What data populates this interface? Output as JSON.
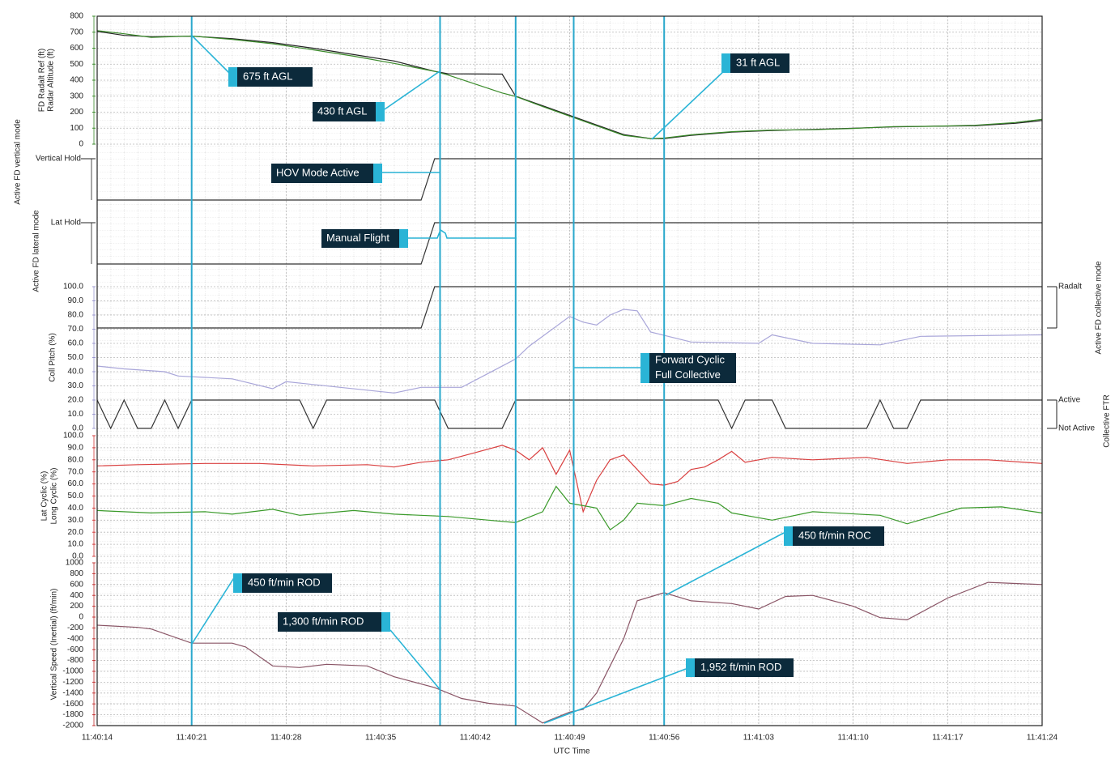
{
  "x_axis": {
    "xlabel": "UTC Time",
    "xlim": [
      "11:40:14",
      "11:41:24"
    ],
    "xticks": [
      "11:40:14",
      "11:40:21",
      "11:40:28",
      "11:40:35",
      "11:40:42",
      "11:40:49",
      "11:40:56",
      "11:41:03",
      "11:41:10",
      "11:41:17",
      "11:41:24"
    ]
  },
  "markers": [
    "11:40:21",
    "11:40:39.4",
    "11:40:45",
    "11:40:49.3",
    "11:40:56"
  ],
  "annotations": [
    {
      "lines": [
        "675 ft  AGL"
      ]
    },
    {
      "lines": [
        "430 ft AGL"
      ]
    },
    {
      "lines": [
        "31 ft AGL"
      ]
    },
    {
      "lines": [
        "HOV Mode Active"
      ]
    },
    {
      "lines": [
        "Manual Flight"
      ]
    },
    {
      "lines": [
        "Forward Cyclic",
        "Full Collective"
      ]
    },
    {
      "lines": [
        "450 ft/min ROD"
      ]
    },
    {
      "lines": [
        "1,300 ft/min ROD"
      ]
    },
    {
      "lines": [
        "450 ft/min ROC"
      ]
    },
    {
      "lines": [
        "1,952 ft/min ROD"
      ]
    }
  ],
  "chart_data": [
    {
      "type": "line",
      "ylim": [
        0,
        800
      ],
      "yticks": [
        0,
        100,
        200,
        300,
        400,
        500,
        600,
        700,
        800
      ],
      "grid": true,
      "tick_color": "#3a8a2a",
      "series": [
        {
          "name": "FD Radalt Ref (ft)",
          "color": "#222222",
          "x": [
            "11:40:14",
            "11:40:16",
            "11:40:18",
            "11:40:21",
            "11:40:24",
            "11:40:27",
            "11:40:30",
            "11:40:33",
            "11:40:36",
            "11:40:39",
            "11:40:40",
            "11:40:44",
            "11:40:45",
            "11:40:47",
            "11:40:49",
            "11:40:51",
            "11:40:53",
            "11:40:55",
            "11:40:56",
            "11:40:58",
            "11:41:01",
            "11:41:04",
            "11:41:07",
            "11:41:10",
            "11:41:13",
            "11:41:16",
            "11:41:19",
            "11:41:22",
            "11:41:24"
          ],
          "values": [
            705,
            680,
            672,
            675,
            660,
            635,
            600,
            560,
            520,
            455,
            440,
            438,
            300,
            240,
            180,
            120,
            60,
            35,
            35,
            55,
            75,
            85,
            92,
            100,
            108,
            112,
            115,
            130,
            148
          ]
        },
        {
          "name": "Radar Altitude (ft)",
          "color": "#3a8a2a",
          "x": [
            "11:40:14",
            "11:40:16",
            "11:40:18",
            "11:40:21",
            "11:40:24",
            "11:40:27",
            "11:40:30",
            "11:40:33",
            "11:40:36",
            "11:40:39",
            "11:40:40",
            "11:40:44",
            "11:40:45",
            "11:40:47",
            "11:40:49",
            "11:40:51",
            "11:40:53",
            "11:40:55",
            "11:40:56",
            "11:40:58",
            "11:41:01",
            "11:41:04",
            "11:41:07",
            "11:41:10",
            "11:41:13",
            "11:41:16",
            "11:41:19",
            "11:41:22",
            "11:41:24"
          ],
          "values": [
            710,
            690,
            668,
            676,
            655,
            628,
            590,
            550,
            505,
            455,
            432,
            320,
            298,
            235,
            175,
            115,
            55,
            35,
            38,
            58,
            78,
            88,
            90,
            98,
            110,
            112,
            118,
            135,
            155
          ]
        }
      ]
    },
    {
      "type": "line",
      "ylabel": "Active FD vertical mode",
      "ylim": [
        0,
        1
      ],
      "yticks": [
        {
          "value": 1,
          "label": "Vertical Hold"
        }
      ],
      "tick_color": "#222222",
      "series": [
        {
          "color": "#333333",
          "x": [
            "11:40:14",
            "11:40:38",
            "11:40:39",
            "11:41:24"
          ],
          "values": [
            0,
            0,
            1,
            1
          ]
        }
      ]
    },
    {
      "type": "line",
      "ylabel": "Active FD lateral mode",
      "ylim": [
        0,
        1
      ],
      "yticks": [
        {
          "value": 1,
          "label": "Lat Hold"
        }
      ],
      "tick_color": "#222222",
      "series": [
        {
          "color": "#333333",
          "x": [
            "11:40:14",
            "11:40:38",
            "11:40:39",
            "11:41:24"
          ],
          "values": [
            0,
            0,
            1,
            1
          ]
        }
      ]
    },
    {
      "type": "line",
      "ylim": [
        0,
        100
      ],
      "grid": true,
      "tick_color": "#9a97cf",
      "yticks": [
        {
          "value": 0,
          "label": "0.0"
        },
        {
          "value": 10,
          "label": "10.0"
        },
        {
          "value": 20,
          "label": "20.0"
        },
        {
          "value": 30,
          "label": "30.0"
        },
        {
          "value": 40,
          "label": "40.0"
        },
        {
          "value": 50,
          "label": "50.0"
        },
        {
          "value": 60,
          "label": "60.0"
        },
        {
          "value": 70,
          "label": "70.0"
        },
        {
          "value": 80,
          "label": "80.0"
        },
        {
          "value": 90,
          "label": "90.0"
        },
        {
          "value": 100,
          "label": "100.0"
        }
      ],
      "series": [
        {
          "name": "Coll Pitch (%)",
          "color": "#a9a6d9",
          "x": [
            "11:40:14",
            "11:40:16",
            "11:40:19",
            "11:40:20",
            "11:40:24",
            "11:40:27",
            "11:40:28",
            "11:40:32",
            "11:40:36",
            "11:40:38",
            "11:40:41",
            "11:40:43",
            "11:40:45",
            "11:40:46",
            "11:40:49",
            "11:40:50",
            "11:40:51",
            "11:40:52",
            "11:40:53",
            "11:40:54",
            "11:40:55",
            "11:40:58",
            "11:41:03",
            "11:41:04",
            "11:41:07",
            "11:41:12",
            "11:41:15",
            "11:41:24"
          ],
          "values": [
            44,
            42,
            40,
            37,
            35,
            28,
            33,
            29,
            25,
            29,
            29,
            39,
            49,
            58,
            79,
            75,
            73,
            80,
            84,
            83,
            68,
            61,
            60,
            66,
            60,
            59,
            65,
            66
          ]
        }
      ]
    },
    {
      "type": "line",
      "axis_side": "right",
      "ylabel": "Active FD collective mode",
      "ylim": [
        0,
        1
      ],
      "yticks": [
        {
          "value": 1,
          "label": "Radalt"
        }
      ],
      "tick_color": "#222222",
      "series": [
        {
          "color": "#333333",
          "x": [
            "11:40:14",
            "11:40:38",
            "11:40:39",
            "11:41:24"
          ],
          "values": [
            0,
            0,
            1,
            1
          ]
        }
      ]
    },
    {
      "type": "line",
      "axis_side": "right",
      "ylabel": "Collective FTR",
      "ylim": [
        0,
        1
      ],
      "yticks": [
        {
          "value": 1,
          "label": "Active"
        },
        {
          "value": 0,
          "label": "Not Active"
        }
      ],
      "tick_color": "#222222",
      "series": [
        {
          "color": "#333333",
          "x": [
            "11:40:14",
            "11:40:15",
            "11:40:16",
            "11:40:17",
            "11:40:18",
            "11:40:19",
            "11:40:20",
            "11:40:21",
            "11:40:29",
            "11:40:30",
            "11:40:31",
            "11:40:39",
            "11:40:40",
            "11:40:44",
            "11:40:45",
            "11:41:00",
            "11:41:01",
            "11:41:02",
            "11:41:04",
            "11:41:05",
            "11:41:11",
            "11:41:12",
            "11:41:13",
            "11:41:14",
            "11:41:15",
            "11:41:24"
          ],
          "values": [
            1,
            0,
            1,
            0,
            0,
            1,
            0,
            1,
            1,
            0,
            1,
            1,
            0,
            0,
            1,
            1,
            0,
            1,
            1,
            0,
            0,
            1,
            0,
            0,
            1,
            1
          ]
        }
      ]
    },
    {
      "type": "line",
      "ylim": [
        0,
        100
      ],
      "grid": true,
      "tick_color": "#d03a3a",
      "yticks": [
        {
          "value": 0,
          "label": "0.0"
        },
        {
          "value": 10,
          "label": "10.0"
        },
        {
          "value": 20,
          "label": "20.0"
        },
        {
          "value": 30,
          "label": "30.0"
        },
        {
          "value": 40,
          "label": "40.0"
        },
        {
          "value": 50,
          "label": "50.0"
        },
        {
          "value": 60,
          "label": "60.0"
        },
        {
          "value": 70,
          "label": "70.0"
        },
        {
          "value": 80,
          "label": "80.0"
        },
        {
          "value": 90,
          "label": "90.0"
        },
        {
          "value": 100,
          "label": "100.0"
        }
      ],
      "series": [
        {
          "name": "Long Cyclic (%)",
          "color": "#d94040",
          "x": [
            "11:40:14",
            "11:40:17",
            "11:40:22",
            "11:40:26",
            "11:40:30",
            "11:40:34",
            "11:40:36",
            "11:40:38",
            "11:40:40",
            "11:40:42",
            "11:40:44",
            "11:40:45",
            "11:40:46",
            "11:40:47",
            "11:40:48",
            "11:40:49",
            "11:40:50",
            "11:40:51",
            "11:40:52",
            "11:40:53",
            "11:40:54",
            "11:40:55",
            "11:40:56",
            "11:40:57",
            "11:40:58",
            "11:40:59",
            "11:41:00",
            "11:41:01",
            "11:41:02",
            "11:41:04",
            "11:41:07",
            "11:41:11",
            "11:41:14",
            "11:41:17",
            "11:41:20",
            "11:41:24"
          ],
          "values": [
            75,
            76,
            77,
            77,
            75,
            76,
            74,
            78,
            80,
            86,
            92,
            88,
            80,
            90,
            68,
            88,
            37,
            63,
            80,
            84,
            72,
            60,
            59,
            62,
            72,
            74,
            80,
            87,
            78,
            82,
            80,
            82,
            77,
            80,
            80,
            77
          ]
        },
        {
          "name": "Lat Cyclic (%)",
          "color": "#3a9a2a",
          "x": [
            "11:40:14",
            "11:40:18",
            "11:40:22",
            "11:40:24",
            "11:40:27",
            "11:40:29",
            "11:40:33",
            "11:40:36",
            "11:40:40",
            "11:40:43",
            "11:40:45",
            "11:40:47",
            "11:40:48",
            "11:40:49",
            "11:40:51",
            "11:40:52",
            "11:40:53",
            "11:40:54",
            "11:40:56",
            "11:40:58",
            "11:41:00",
            "11:41:01",
            "11:41:04",
            "11:41:07",
            "11:41:12",
            "11:41:14",
            "11:41:18",
            "11:41:21",
            "11:41:24"
          ],
          "values": [
            38,
            36,
            37,
            35,
            39,
            34,
            38,
            35,
            33,
            30,
            28,
            37,
            58,
            44,
            40,
            22,
            30,
            44,
            42,
            48,
            44,
            36,
            30,
            37,
            34,
            27,
            40,
            41,
            36
          ]
        }
      ]
    },
    {
      "type": "line",
      "ylim": [
        -2000,
        1000
      ],
      "grid": true,
      "tick_color": "#c03030",
      "yticks": [
        -2000,
        -1800,
        -1600,
        -1400,
        -1200,
        -1000,
        -800,
        -600,
        -400,
        -200,
        0,
        200,
        400,
        600,
        800,
        1000
      ],
      "series": [
        {
          "name": "Vertical Speed (Inertial) (ft/min)",
          "color": "#8a5566",
          "x": [
            "11:40:14",
            "11:40:17",
            "11:40:18",
            "11:40:21",
            "11:40:24",
            "11:40:25",
            "11:40:27",
            "11:40:29",
            "11:40:31",
            "11:40:34",
            "11:40:36",
            "11:40:39",
            "11:40:41",
            "11:40:43",
            "11:40:45",
            "11:40:47",
            "11:40:49",
            "11:40:50",
            "11:40:51",
            "11:40:53",
            "11:40:54",
            "11:40:56",
            "11:40:58",
            "11:41:01",
            "11:41:03",
            "11:41:05",
            "11:41:07",
            "11:41:10",
            "11:41:12",
            "11:41:14",
            "11:41:17",
            "11:41:20",
            "11:41:22",
            "11:41:24"
          ],
          "values": [
            -150,
            -190,
            -220,
            -480,
            -480,
            -550,
            -900,
            -930,
            -870,
            -900,
            -1100,
            -1300,
            -1500,
            -1590,
            -1640,
            -1952,
            -1750,
            -1700,
            -1400,
            -400,
            300,
            450,
            300,
            250,
            150,
            380,
            400,
            200,
            -10,
            -50,
            350,
            640,
            620,
            600
          ]
        }
      ]
    }
  ]
}
